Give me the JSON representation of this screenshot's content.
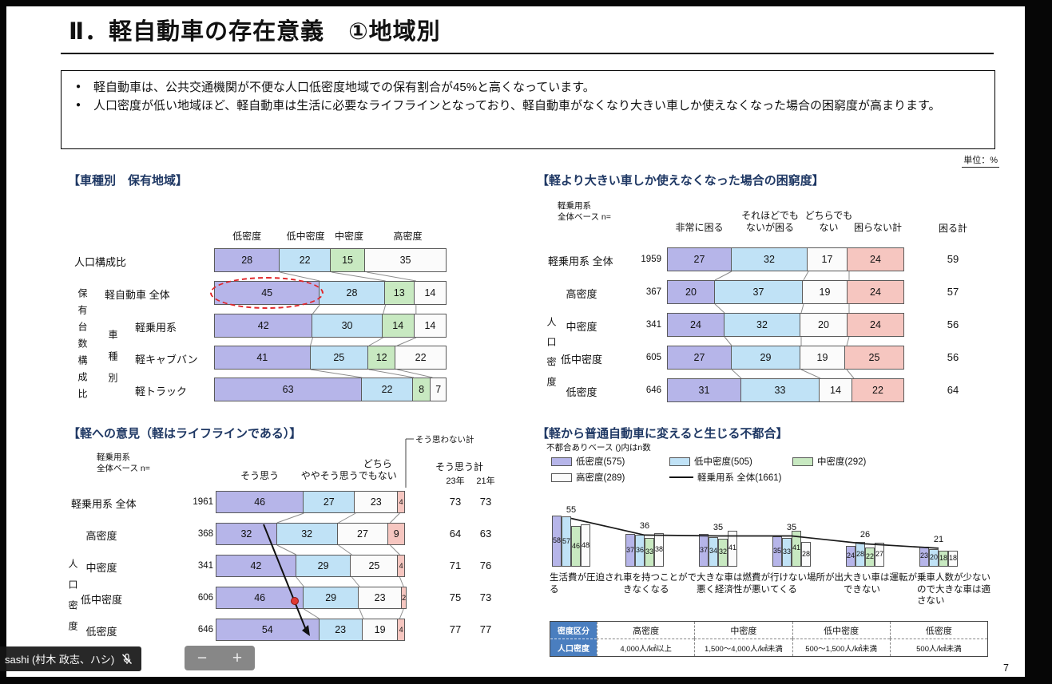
{
  "page": {
    "number": "7",
    "unit_label": "単位：%"
  },
  "header": {
    "title": "Ⅱ．軽自動車の存在意義　①地域別"
  },
  "summary": {
    "bullets": [
      "軽自動車は、公共交通機関が不便な人口低密度地域での保有割合が45%と高くなっています。",
      "人口密度が低い地域ほど、軽自動車は生活に必要なライフラインとなっており、軽自動車がなくなり大きい車しか使えなくなった場合の困窮度が高まります。"
    ]
  },
  "colors": {
    "low_density": "#b6b5e9",
    "low_mid_density": "#c0e2f6",
    "mid_density": "#c8e9c1",
    "high_density": "#fbfbfb",
    "negative_pink": "#f6c6c0",
    "segment_border": "#5a5a5a",
    "section_title": "#1f3864",
    "table_header_blue": "#4a7ebf",
    "highlight_red": "#e0262a"
  },
  "chart_data": [
    {
      "id": "ownership-by-region",
      "type": "bar",
      "title": "【車種別　保有地域】",
      "column_headers": [
        "低密度",
        "低中密度",
        "中密度",
        "高密度"
      ],
      "segment_colors": [
        "low",
        "lowmid",
        "mid",
        "high"
      ],
      "rows": [
        {
          "label": "人口構成比",
          "values": [
            28,
            22,
            15,
            35
          ]
        },
        {
          "label": "軽自動車 全体",
          "values": [
            45,
            28,
            13,
            14
          ],
          "highlight_first": true
        },
        {
          "label": "軽乗用系",
          "values": [
            42,
            30,
            14,
            14
          ]
        },
        {
          "label": "軽キャブバン",
          "values": [
            41,
            25,
            12,
            22
          ]
        },
        {
          "label": "軽トラック",
          "values": [
            63,
            22,
            8,
            7
          ]
        }
      ],
      "side_label_outer": "保有台数構成比",
      "side_label_inner": "車種別"
    },
    {
      "id": "hardship-if-only-larger-cars",
      "type": "bar",
      "title": "【軽より大きい車しか使えなくなった場合の困窮度】",
      "base_label": "軽乗用系\n全体ベース n=",
      "column_headers": [
        "非常に困る",
        "それほどでも\nないが困る",
        "どちらでも\nない",
        "困らない計"
      ],
      "total_header": "困る計",
      "segment_colors": [
        "low",
        "lowmid",
        "high",
        "pink"
      ],
      "rows": [
        {
          "label": "軽乗用系 全体",
          "n": "1959",
          "values": [
            27,
            32,
            17,
            24
          ],
          "total": "59"
        },
        {
          "label": "高密度",
          "n": "367",
          "values": [
            20,
            37,
            19,
            24
          ],
          "total": "57"
        },
        {
          "label": "中密度",
          "n": "341",
          "values": [
            24,
            32,
            20,
            24
          ],
          "total": "56"
        },
        {
          "label": "低中密度",
          "n": "605",
          "values": [
            27,
            29,
            19,
            25
          ],
          "total": "56"
        },
        {
          "label": "低密度",
          "n": "646",
          "values": [
            31,
            33,
            14,
            22
          ],
          "total": "64"
        }
      ],
      "side_label": "人口密度"
    },
    {
      "id": "opinion-kei-is-lifeline",
      "type": "bar",
      "title": "【軽への意見（軽はライフラインである）】",
      "base_label": "軽乗用系\n全体ベース n=",
      "annotation": "そう思わない計",
      "column_headers": [
        "そう思う",
        "ややそう思う",
        "どちら\nでもない"
      ],
      "totals_header": "そう思う計",
      "totals_columns": [
        "23年",
        "21年"
      ],
      "segment_colors": [
        "low",
        "lowmid",
        "high",
        "pink"
      ],
      "rows": [
        {
          "label": "軽乗用系 全体",
          "n": "1961",
          "values": [
            46,
            27,
            23,
            4
          ],
          "totals": [
            "73",
            "73"
          ]
        },
        {
          "label": "高密度",
          "n": "368",
          "values": [
            32,
            32,
            27,
            9
          ],
          "totals": [
            "64",
            "63"
          ]
        },
        {
          "label": "中密度",
          "n": "341",
          "values": [
            42,
            29,
            25,
            4
          ],
          "totals": [
            "71",
            "76"
          ]
        },
        {
          "label": "低中密度",
          "n": "606",
          "values": [
            46,
            29,
            23,
            2
          ],
          "totals": [
            "75",
            "73"
          ]
        },
        {
          "label": "低密度",
          "n": "646",
          "values": [
            54,
            23,
            19,
            4
          ],
          "totals": [
            "77",
            "77"
          ]
        }
      ],
      "side_label": "人口密度"
    },
    {
      "id": "inconveniences-switching-to-regular-car",
      "type": "bar",
      "title": "【軽から普通自動車に変えると生じる不都合】",
      "subtitle": "不都合ありベース ()内はn数",
      "legend": [
        {
          "label": "低密度(575)",
          "swatch": "low"
        },
        {
          "label": "低中密度(505)",
          "swatch": "lowmid"
        },
        {
          "label": "中密度(292)",
          "swatch": "mid"
        },
        {
          "label": "高密度(289)",
          "swatch": "high"
        },
        {
          "label": "軽乗用系 全体(1661)",
          "swatch": "line"
        }
      ],
      "categories": [
        "生活費が圧迫される",
        "車を持つことができなくなる",
        "大きな車は燃費が悪く経済性が悪い",
        "行けない場所が出てくる",
        "大きい車は運転ができない",
        "乗車人数が少ないので大きな車は適さない"
      ],
      "series": [
        {
          "name": "低密度",
          "values": [
            58,
            37,
            37,
            35,
            24,
            23
          ]
        },
        {
          "name": "低中密度",
          "values": [
            57,
            36,
            34,
            33,
            28,
            20
          ]
        },
        {
          "name": "中密度",
          "values": [
            46,
            33,
            32,
            41,
            22,
            18
          ]
        },
        {
          "name": "高密度",
          "values": [
            48,
            38,
            41,
            28,
            27,
            18
          ]
        }
      ],
      "line_series": {
        "name": "軽乗用系 全体",
        "values": [
          55,
          36,
          35,
          35,
          26,
          21
        ]
      },
      "density_table": {
        "row_headers": [
          "密度区分",
          "人口密度"
        ],
        "columns": [
          {
            "name": "高密度",
            "range": "4,000人/㎢以上"
          },
          {
            "name": "中密度",
            "range": "1,500～4,000人/㎢未満"
          },
          {
            "name": "低中密度",
            "range": "500～1,500人/㎢未満"
          },
          {
            "name": "低密度",
            "range": "500人/㎢未満"
          }
        ]
      }
    }
  ],
  "overlay": {
    "participant_name": "sashi (村木 政志、ハシ)",
    "zoom_out": "−",
    "zoom_in": "+"
  }
}
